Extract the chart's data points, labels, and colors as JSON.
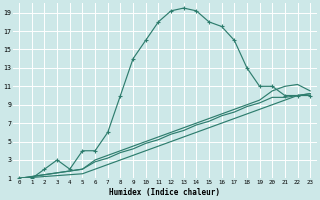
{
  "xlabel": "Humidex (Indice chaleur)",
  "bg_color": "#cde8e8",
  "grid_color": "#ffffff",
  "line_color": "#2e7d6e",
  "xlim": [
    -0.5,
    23.5
  ],
  "ylim": [
    1,
    20
  ],
  "xticks": [
    0,
    1,
    2,
    3,
    4,
    5,
    6,
    7,
    8,
    9,
    10,
    11,
    12,
    13,
    14,
    15,
    16,
    17,
    18,
    19,
    20,
    21,
    22,
    23
  ],
  "yticks": [
    1,
    3,
    5,
    7,
    9,
    11,
    13,
    15,
    17,
    19
  ],
  "line1_x": [
    0,
    1,
    2,
    3,
    4,
    5,
    6,
    7,
    8,
    9,
    10,
    11,
    12,
    13,
    14,
    15,
    16,
    17,
    18,
    19,
    20,
    21,
    22,
    23
  ],
  "line1_y": [
    1,
    1,
    2,
    3,
    2,
    4,
    4,
    6,
    10,
    14,
    16,
    18,
    19.2,
    19.5,
    19.2,
    18,
    17.5,
    16,
    13,
    11,
    11,
    10,
    10,
    10
  ],
  "line2_x": [
    0,
    5,
    6,
    7,
    8,
    9,
    10,
    11,
    12,
    13,
    14,
    15,
    16,
    17,
    18,
    19,
    20,
    21,
    22,
    23
  ],
  "line2_y": [
    1,
    2,
    3,
    3.5,
    4,
    4.5,
    5,
    5.5,
    6,
    6.5,
    7,
    7.5,
    8,
    8.5,
    9,
    9.5,
    10.5,
    11,
    11.2,
    10.5
  ],
  "line3_x": [
    0,
    5,
    6,
    7,
    8,
    9,
    10,
    11,
    12,
    13,
    14,
    15,
    16,
    17,
    18,
    19,
    20,
    21,
    22,
    23
  ],
  "line3_y": [
    1,
    2,
    2.8,
    3.2,
    3.8,
    4.2,
    4.8,
    5.2,
    5.8,
    6.2,
    6.8,
    7.2,
    7.8,
    8.2,
    8.8,
    9.2,
    9.8,
    9.8,
    10,
    10.2
  ],
  "line4_x": [
    0,
    5,
    6,
    7,
    8,
    9,
    10,
    11,
    12,
    13,
    14,
    15,
    16,
    17,
    18,
    19,
    20,
    21,
    22,
    23
  ],
  "line4_y": [
    1,
    1.5,
    2,
    2.5,
    3,
    3.5,
    4,
    4.5,
    5,
    5.5,
    6,
    6.5,
    7,
    7.5,
    8,
    8.5,
    9,
    9.5,
    10,
    10.2
  ]
}
